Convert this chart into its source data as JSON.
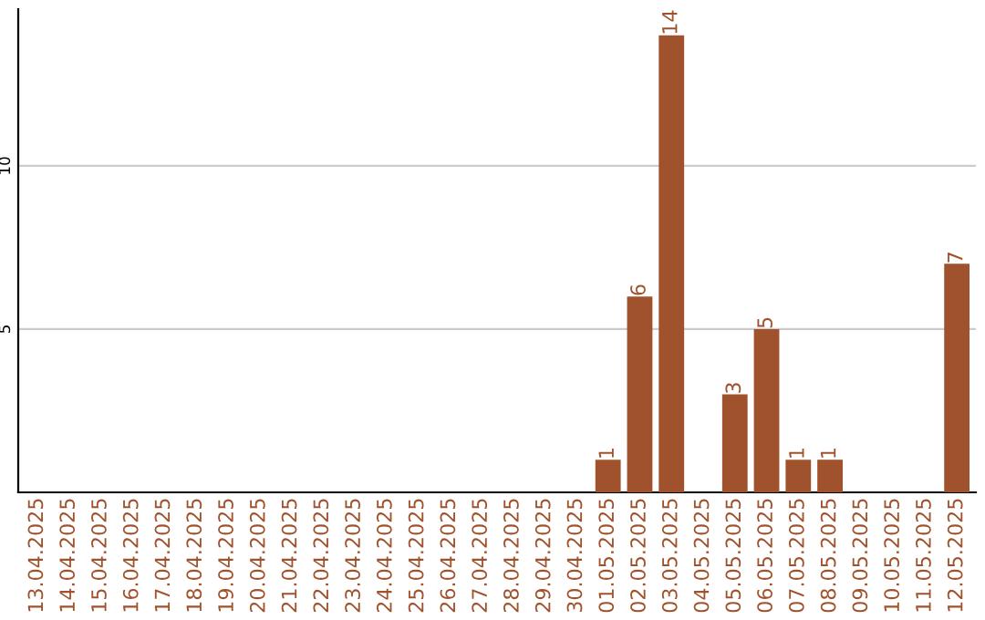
{
  "chart_data": {
    "type": "bar",
    "categories": [
      "13.04.2025",
      "14.04.2025",
      "15.04.2025",
      "16.04.2025",
      "17.04.2025",
      "18.04.2025",
      "19.04.2025",
      "20.04.2025",
      "21.04.2025",
      "22.04.2025",
      "23.04.2025",
      "24.04.2025",
      "25.04.2025",
      "26.04.2025",
      "27.04.2025",
      "28.04.2025",
      "29.04.2025",
      "30.04.2025",
      "01.05.2025",
      "02.05.2025",
      "03.05.2025",
      "04.05.2025",
      "05.05.2025",
      "06.05.2025",
      "07.05.2025",
      "08.05.2025",
      "09.05.2025",
      "10.05.2025",
      "11.05.2025",
      "12.05.2025"
    ],
    "values": [
      0,
      0,
      0,
      0,
      0,
      0,
      0,
      0,
      0,
      0,
      0,
      0,
      0,
      0,
      0,
      0,
      0,
      0,
      1,
      6,
      14,
      0,
      3,
      5,
      1,
      1,
      0,
      0,
      0,
      7
    ],
    "value_labels": [
      null,
      null,
      null,
      null,
      null,
      null,
      null,
      null,
      null,
      null,
      null,
      null,
      null,
      null,
      null,
      null,
      null,
      null,
      "1",
      "6",
      "14",
      null,
      "3",
      "5",
      "1",
      "1",
      null,
      null,
      null,
      "7"
    ],
    "color": "#a0522d",
    "ylim": [
      0,
      14.8
    ],
    "yticks": [
      5,
      10
    ],
    "grid": "y"
  }
}
